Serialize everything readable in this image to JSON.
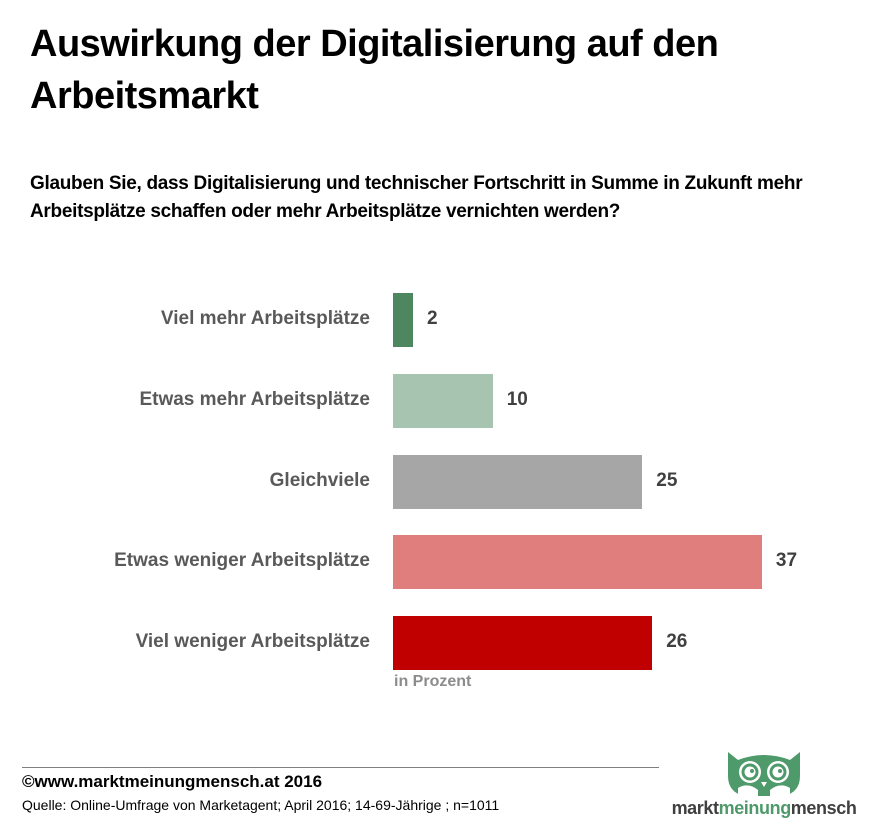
{
  "title": "Auswirkung der Digitalisierung auf den Arbeitsmarkt",
  "question": "Glauben Sie, dass Digitalisierung und technischer Fortschritt in Summe in Zukunft mehr Arbeitsplätze schaffen oder mehr Arbeitsplätze vernichten werden?",
  "chart_data": {
    "type": "bar",
    "orientation": "horizontal",
    "title": "Auswirkung der Digitalisierung auf den Arbeitsmarkt",
    "subtitle": "Glauben Sie, dass Digitalisierung und technischer Fortschritt in Summe in Zukunft mehr Arbeitsplätze schaffen oder mehr Arbeitsplätze vernichten werden?",
    "categories": [
      "Viel mehr Arbeitsplätze",
      "Etwas mehr Arbeitsplätze",
      "Gleichviele",
      "Etwas weniger Arbeitsplätze",
      "Viel weniger Arbeitsplätze"
    ],
    "values": [
      2,
      10,
      25,
      37,
      26
    ],
    "value_labels": [
      "2",
      "10",
      "25",
      "37",
      "26"
    ],
    "colors": [
      "#4e875f",
      "#a6c4b0",
      "#a6a6a6",
      "#e07e7e",
      "#c00000"
    ],
    "xlabel": "in Prozent",
    "ylabel": "",
    "xlim": [
      0,
      40
    ],
    "grid": false,
    "legend": "none"
  },
  "footer": {
    "copyright": "©www.marktmeinungmensch.at 2016",
    "source": "Quelle: Online-Umfrage von Marketagent; April 2016; 14-69-Jährige ; n=1011"
  },
  "logo": {
    "part1": "markt",
    "part2": "meinung",
    "part3": "mensch",
    "icon": "owl-icon",
    "color": "#4e9a6a"
  }
}
